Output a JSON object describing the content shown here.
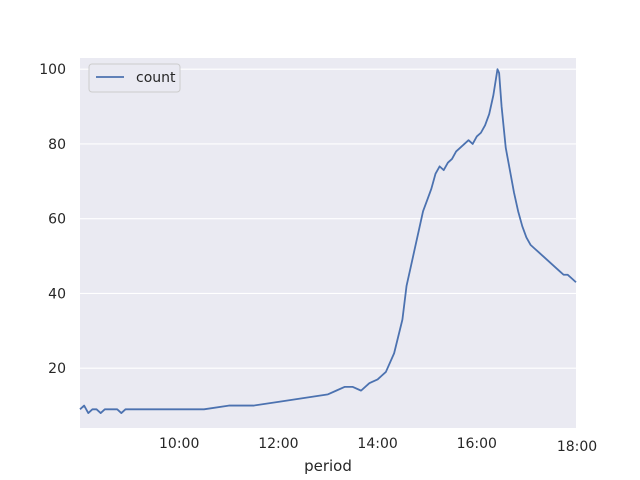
{
  "chart_data": {
    "type": "line",
    "title": "",
    "xlabel": "period",
    "ylabel": "",
    "xlim": [
      "08:00",
      "18:00"
    ],
    "ylim": [
      4,
      103
    ],
    "x_ticks": [
      "10:00",
      "12:00",
      "14:00",
      "16:00",
      "18:00"
    ],
    "y_ticks": [
      20,
      40,
      60,
      80,
      100
    ],
    "grid": true,
    "legend_position": "top-left",
    "background_color": "#eaeaf2",
    "grid_color": "#ffffff",
    "series": [
      {
        "name": "count",
        "color": "#4c72b0",
        "x": [
          "08:00",
          "08:05",
          "08:10",
          "08:15",
          "08:20",
          "08:25",
          "08:30",
          "08:35",
          "08:40",
          "08:45",
          "08:50",
          "08:55",
          "09:00",
          "09:30",
          "10:00",
          "10:30",
          "11:00",
          "11:30",
          "12:00",
          "12:30",
          "13:00",
          "13:10",
          "13:20",
          "13:30",
          "13:40",
          "13:50",
          "14:00",
          "14:10",
          "14:20",
          "14:30",
          "14:35",
          "14:40",
          "14:45",
          "14:50",
          "14:55",
          "15:00",
          "15:05",
          "15:10",
          "15:15",
          "15:20",
          "15:25",
          "15:30",
          "15:35",
          "15:40",
          "15:45",
          "15:50",
          "15:55",
          "16:00",
          "16:05",
          "16:10",
          "16:15",
          "16:20",
          "16:25",
          "16:27",
          "16:30",
          "16:35",
          "16:40",
          "16:45",
          "16:50",
          "16:55",
          "17:00",
          "17:05",
          "17:10",
          "17:15",
          "17:20",
          "17:25",
          "17:30",
          "17:35",
          "17:40",
          "17:45",
          "17:50",
          "17:55",
          "18:00"
        ],
        "values": [
          9,
          10,
          8,
          9,
          9,
          8,
          9,
          9,
          9,
          9,
          8,
          9,
          9,
          9,
          9,
          9,
          10,
          10,
          11,
          12,
          13,
          14,
          15,
          15,
          14,
          16,
          17,
          19,
          24,
          33,
          42,
          47,
          52,
          57,
          62,
          65,
          68,
          72,
          74,
          73,
          75,
          76,
          78,
          79,
          80,
          81,
          80,
          82,
          83,
          85,
          88,
          93,
          100,
          99,
          90,
          79,
          73,
          67,
          62,
          58,
          55,
          53,
          52,
          51,
          50,
          49,
          48,
          47,
          46,
          45,
          45,
          44,
          43
        ]
      }
    ]
  }
}
